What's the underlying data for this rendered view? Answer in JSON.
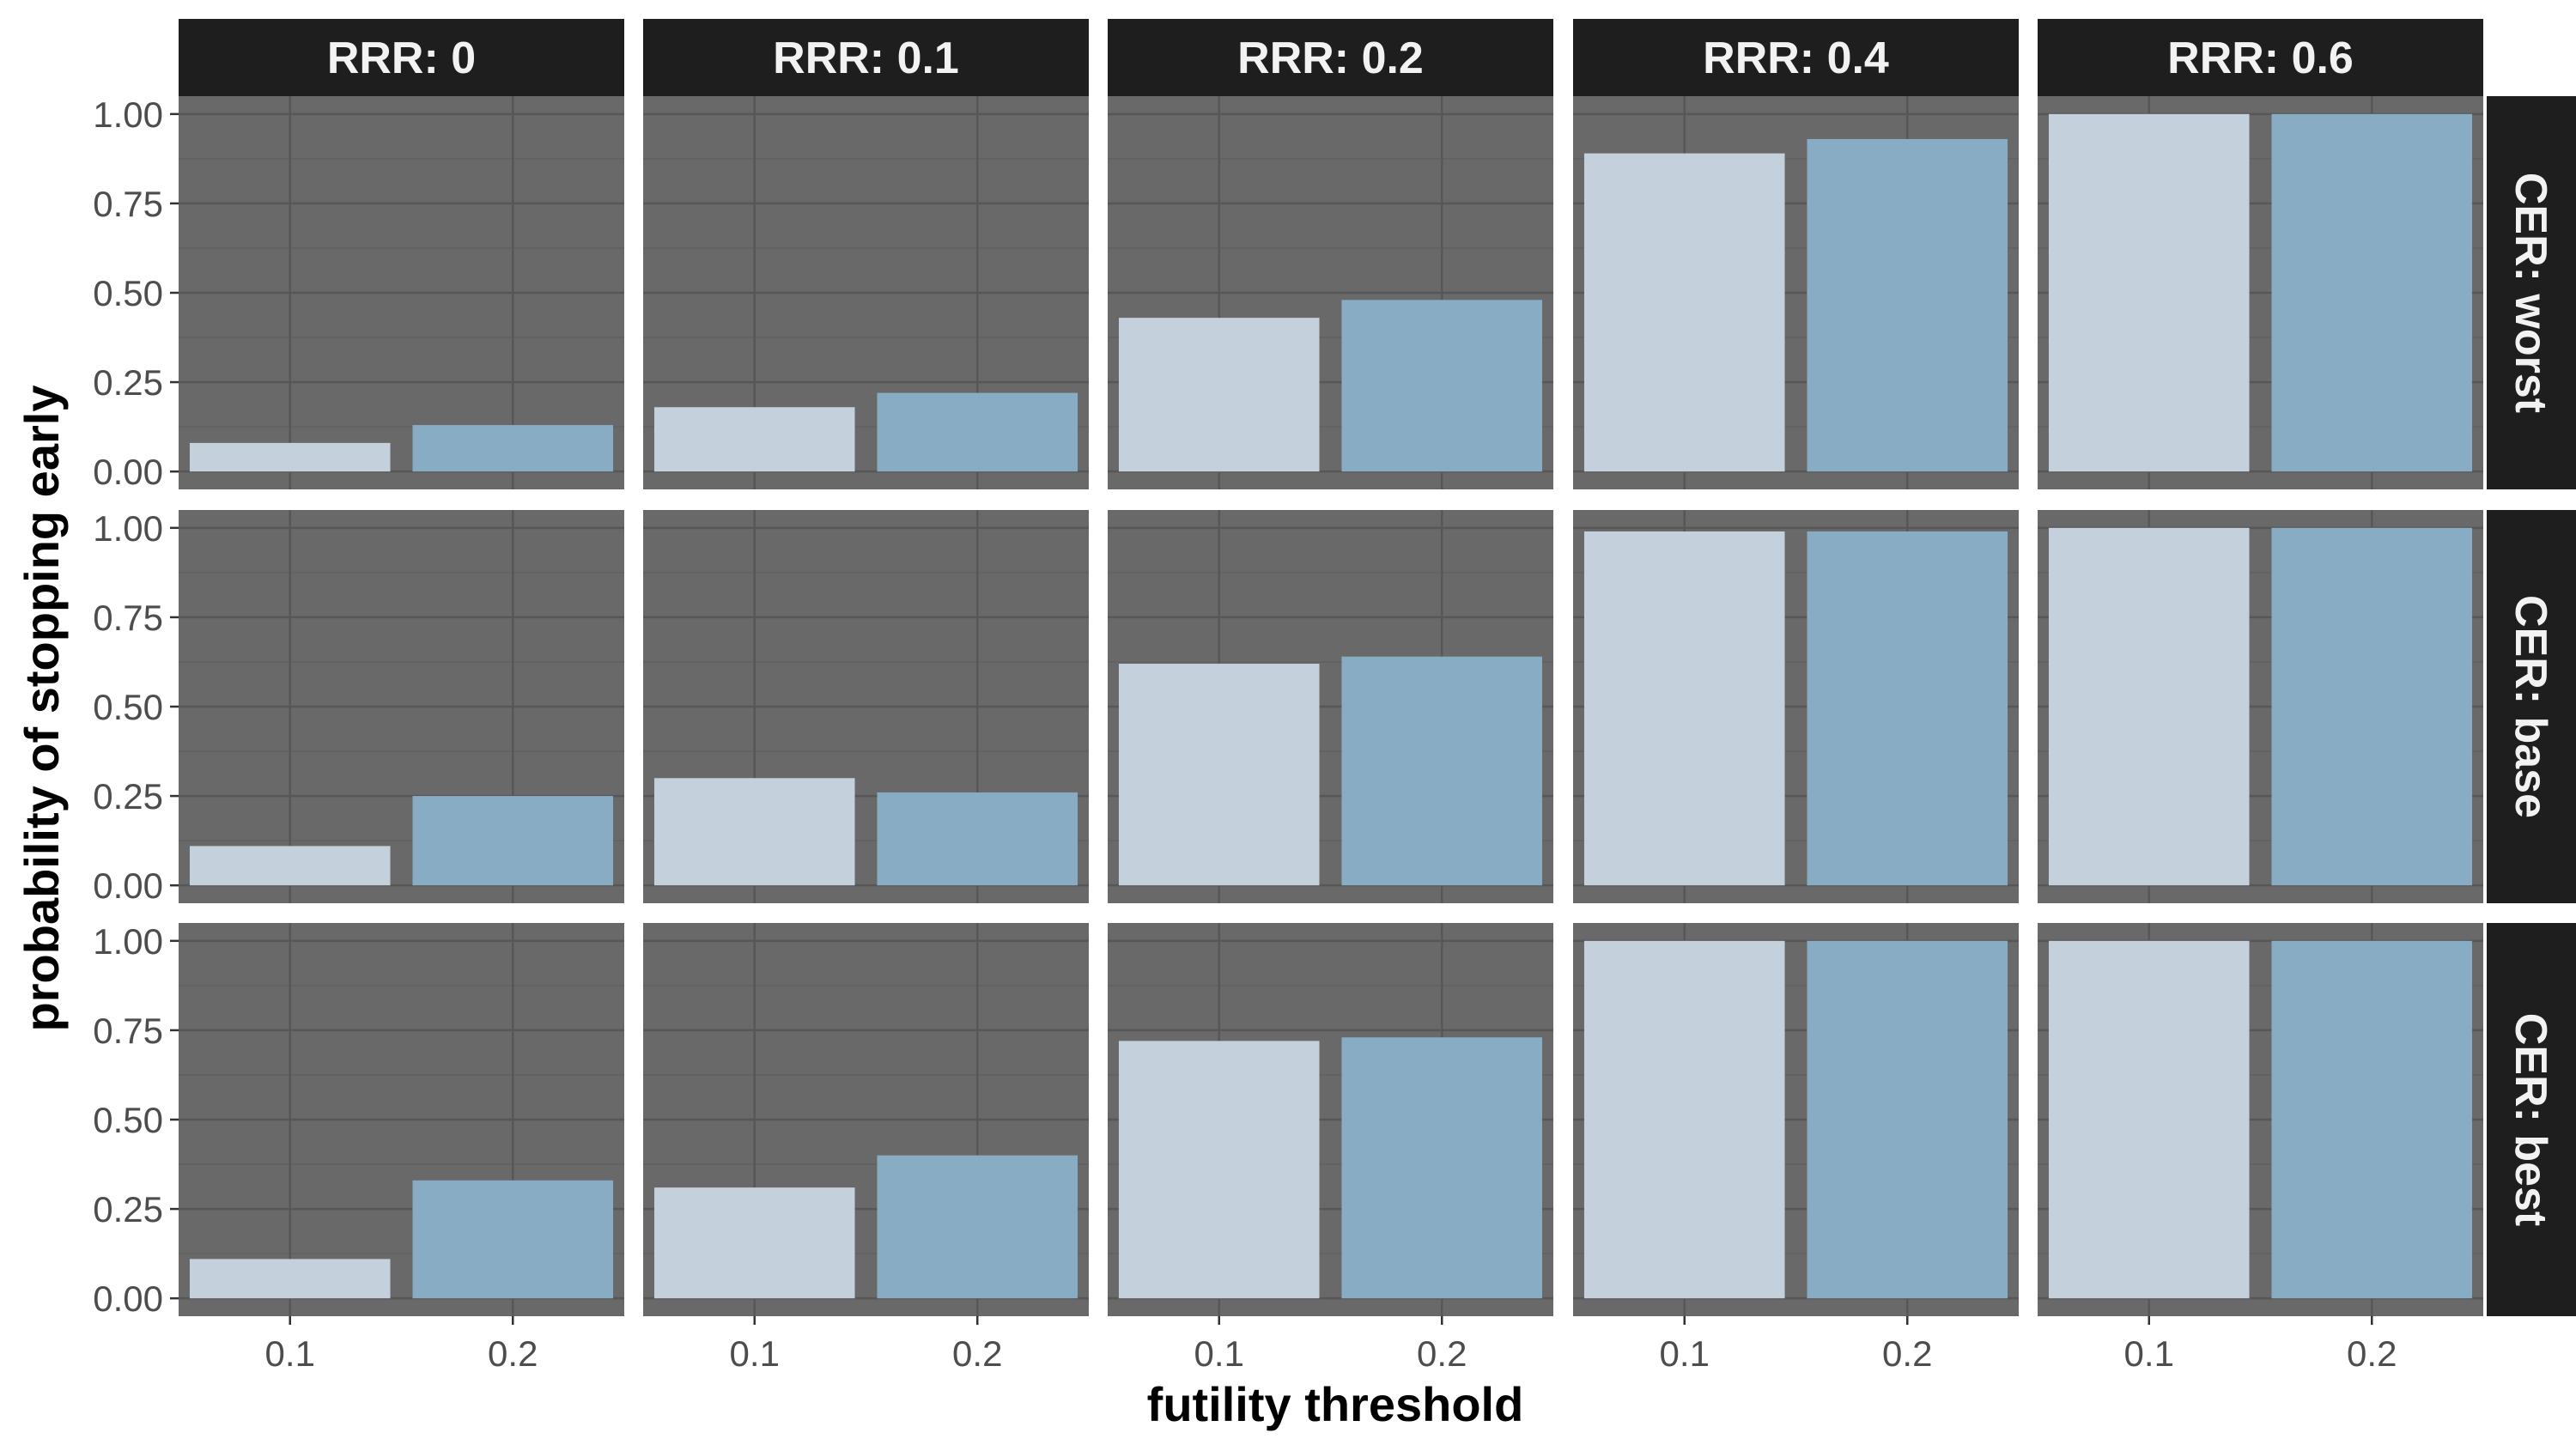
{
  "chart_data": {
    "type": "bar",
    "facet_columns": [
      "RRR: 0",
      "RRR: 0.1",
      "RRR: 0.2",
      "RRR: 0.4",
      "RRR: 0.6"
    ],
    "facet_rows": [
      "CER: worst",
      "CER: base",
      "CER: best"
    ],
    "categories": [
      "0.1",
      "0.2"
    ],
    "values": [
      [
        [
          0.08,
          0.13
        ],
        [
          0.18,
          0.22
        ],
        [
          0.43,
          0.48
        ],
        [
          0.89,
          0.93
        ],
        [
          1.0,
          1.0
        ]
      ],
      [
        [
          0.11,
          0.25
        ],
        [
          0.3,
          0.26
        ],
        [
          0.62,
          0.64
        ],
        [
          0.99,
          0.99
        ],
        [
          1.0,
          1.0
        ]
      ],
      [
        [
          0.11,
          0.33
        ],
        [
          0.31,
          0.4
        ],
        [
          0.72,
          0.73
        ],
        [
          1.0,
          1.0
        ],
        [
          1.0,
          1.0
        ]
      ]
    ],
    "xlabel": "futility threshold",
    "ylabel": "probability of stopping early",
    "ylim": [
      -0.05,
      1.05
    ],
    "yticks": [
      "0.00",
      "0.25",
      "0.50",
      "0.75",
      "1.00"
    ],
    "ytick_values": [
      0,
      0.25,
      0.5,
      0.75,
      1
    ],
    "grid": true,
    "colors": {
      "panel_background": "#696969",
      "strip_background": "#1e1e1e",
      "grid_major": "#575757",
      "grid_minor": "#616161",
      "bar_fill": [
        "#c4d0dc",
        "#87acc4"
      ]
    }
  }
}
